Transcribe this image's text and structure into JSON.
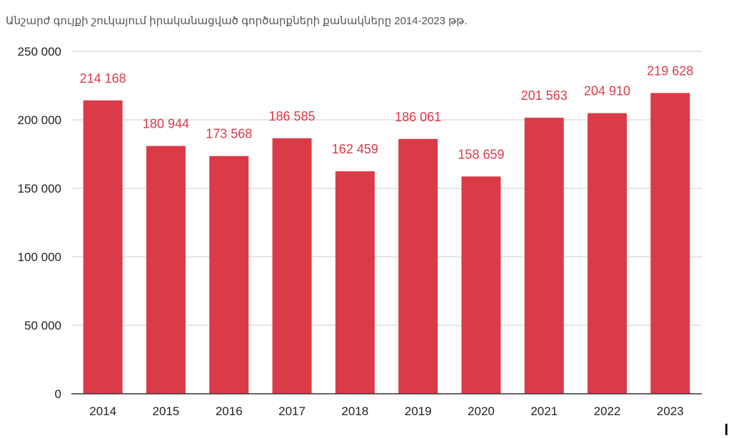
{
  "chart_data": {
    "type": "bar",
    "title": "Անշարժ գույքի շուկայում իրականացված գործարքների քանակները 2014-2023 թթ.",
    "categories": [
      "2014",
      "2015",
      "2016",
      "2017",
      "2018",
      "2019",
      "2020",
      "2021",
      "2022",
      "2023"
    ],
    "values": [
      214168,
      180944,
      173568,
      186585,
      162459,
      186061,
      158659,
      201563,
      204910,
      219628
    ],
    "data_labels": [
      "214 168",
      "180 944",
      "173 568",
      "186 585",
      "162 459",
      "186 061",
      "158 659",
      "201 563",
      "204 910",
      "219 628"
    ],
    "ylim": [
      0,
      250000
    ],
    "yticks": [
      0,
      50000,
      100000,
      150000,
      200000,
      250000
    ],
    "ytick_labels": [
      "0",
      "50 000",
      "100 000",
      "150 000",
      "200 000",
      "250 000"
    ],
    "xlabel": "",
    "ylabel": "",
    "grid": true,
    "legend": "none",
    "colors": {
      "bar": "#db3a47",
      "data_label": "#db3a47",
      "grid": "#cccccc",
      "axis": "#333333",
      "tick_text": "#222222",
      "title_text": "#555555"
    }
  }
}
